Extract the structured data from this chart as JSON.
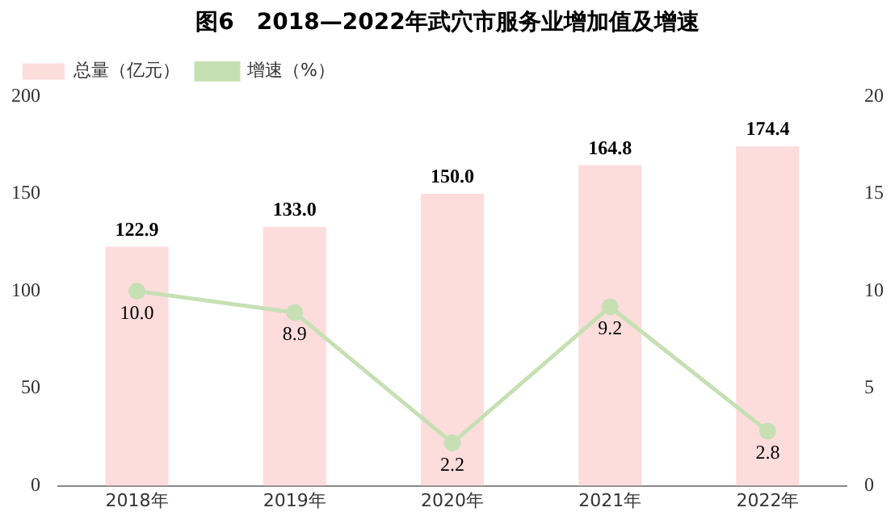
{
  "chart_data": {
    "type": "bar",
    "title": "图6　2018—2022年武穴市服务业增加值及增速",
    "categories": [
      "2018年",
      "2019年",
      "2020年",
      "2021年",
      "2022年"
    ],
    "series": [
      {
        "name": "总量（亿元）",
        "color": "#fddcdc",
        "values": [
          122.9,
          133.0,
          150.0,
          164.8,
          174.4
        ],
        "value_labels": [
          "122.9",
          "133.0",
          "150.0",
          "164.8",
          "174.4"
        ]
      },
      {
        "name": "增速（%）",
        "type": "line",
        "axis": "y2",
        "color": "#c6e0b4",
        "marker": "circle",
        "values": [
          10.0,
          8.9,
          2.2,
          9.2,
          2.8
        ],
        "value_labels": [
          "10.0",
          "8.9",
          "2.2",
          "9.2",
          "2.8"
        ]
      }
    ],
    "ylim": [
      0,
      200
    ],
    "yticks": [
      0,
      50,
      100,
      150,
      200
    ],
    "y2lim": [
      0,
      20
    ],
    "y2ticks": [
      0,
      5,
      10,
      15,
      20
    ],
    "grid": false,
    "legend": "top left"
  }
}
